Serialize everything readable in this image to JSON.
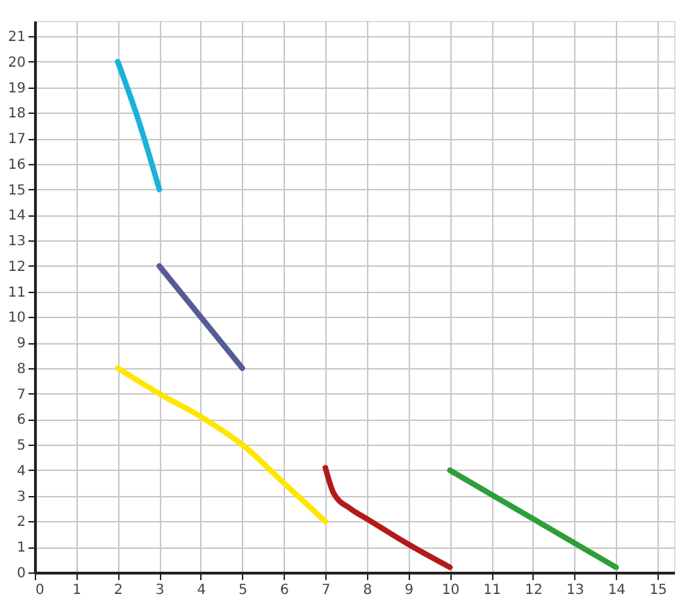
{
  "chart_data": {
    "type": "line",
    "xlim": [
      0,
      15.4
    ],
    "ylim": [
      0,
      21.6
    ],
    "xticks": [
      0,
      1,
      2,
      3,
      4,
      5,
      6,
      7,
      8,
      9,
      10,
      11,
      12,
      13,
      14,
      15
    ],
    "yticks": [
      0,
      1,
      2,
      3,
      4,
      5,
      6,
      7,
      8,
      9,
      10,
      11,
      12,
      13,
      14,
      15,
      16,
      17,
      18,
      19,
      20,
      21
    ],
    "grid": true,
    "line_style": "solid",
    "marker": "none",
    "series": [
      {
        "color": "#1ab2d8",
        "x": [
          2,
          2.5,
          3
        ],
        "values": [
          20,
          17.7,
          15
        ]
      },
      {
        "color": "#555b95",
        "x": [
          3,
          5
        ],
        "values": [
          12,
          8
        ]
      },
      {
        "color": "#ffe600",
        "x": [
          2,
          3,
          4,
          5,
          6,
          7
        ],
        "values": [
          8,
          7,
          6.1,
          5,
          3.5,
          2
        ]
      },
      {
        "color": "#b31b1b",
        "x": [
          7,
          7.2,
          7.6,
          8,
          9,
          10
        ],
        "values": [
          4.1,
          3.1,
          2.5,
          2.1,
          1.1,
          0.2
        ]
      },
      {
        "color": "#2e9e3a",
        "x": [
          10,
          14
        ],
        "values": [
          4,
          0.2
        ]
      }
    ]
  }
}
